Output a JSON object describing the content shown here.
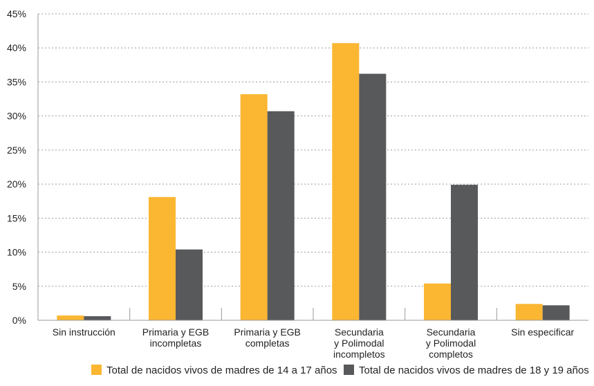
{
  "chart_data": {
    "type": "bar",
    "title": "",
    "xlabel": "",
    "ylabel": "",
    "ylim": [
      0,
      45
    ],
    "y_ticks": [
      0,
      5,
      10,
      15,
      20,
      25,
      30,
      35,
      40,
      45
    ],
    "y_tick_suffix": "%",
    "grid": true,
    "legend_position": "bottom",
    "categories": [
      [
        "Sin instrucción"
      ],
      [
        "Primaria y EGB",
        "incompletas"
      ],
      [
        "Primaria y EGB",
        "completas"
      ],
      [
        "Secundaria",
        "y Polimodal",
        "incompletos"
      ],
      [
        "Secundaria",
        "y Polimodal",
        "completos"
      ],
      [
        "Sin especificar"
      ]
    ],
    "series": [
      {
        "name": "Total de nacidos vivos de madres de 14 a 17 años",
        "color": "#FBB632",
        "values": [
          0.7,
          18.1,
          33.2,
          40.7,
          5.4,
          2.4
        ]
      },
      {
        "name": "Total de nacidos vivos de madres de 18 y 19 años",
        "color": "#58595B",
        "values": [
          0.6,
          10.4,
          30.7,
          36.2,
          19.9,
          2.2
        ]
      }
    ]
  }
}
